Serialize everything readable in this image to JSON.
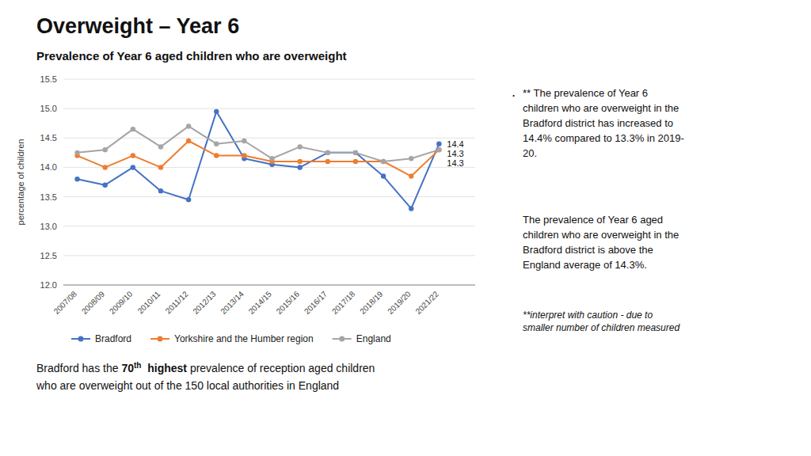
{
  "chart_data": {
    "type": "line",
    "title": "Overweight – Year 6",
    "subtitle": "Prevalence of Year 6 aged children who are overweight",
    "ylabel": "percentage of children",
    "categories": [
      "2007/08",
      "2008/09",
      "2009/10",
      "2010/11",
      "2011/12",
      "2012/13",
      "2013/14",
      "2014/15",
      "2015/16",
      "2016/17",
      "2017/18",
      "2018/19",
      "2019/20",
      "2021/22"
    ],
    "series": [
      {
        "name": "Bradford",
        "color": "#4472C4",
        "marker": "circle",
        "values": [
          13.8,
          13.7,
          14.0,
          13.6,
          13.45,
          14.95,
          14.15,
          14.05,
          14.0,
          14.25,
          14.25,
          13.85,
          13.3,
          14.4
        ]
      },
      {
        "name": "Yorkshire and the Humber region",
        "color": "#ED7D31",
        "marker": "circle",
        "values": [
          14.2,
          14.0,
          14.2,
          14.0,
          14.45,
          14.2,
          14.2,
          14.1,
          14.1,
          14.1,
          14.1,
          14.1,
          13.85,
          14.3
        ]
      },
      {
        "name": "England",
        "color": "#A5A5A5",
        "marker": "circle",
        "values": [
          14.25,
          14.3,
          14.65,
          14.35,
          14.7,
          14.4,
          14.45,
          14.15,
          14.35,
          14.25,
          14.25,
          14.1,
          14.15,
          14.3
        ]
      }
    ],
    "ylim": [
      12.0,
      15.5
    ],
    "yticks": [
      {
        "value": 12.0,
        "label": "12.0"
      },
      12.5,
      {
        "value": 13.0,
        "label": "13.0"
      },
      13.5,
      {
        "value": 14.0,
        "label": "14.0"
      },
      14.5,
      {
        "value": 15.0,
        "label": "15.0"
      },
      15.5
    ],
    "grid": true,
    "legend": "bottom",
    "annotations": [
      {
        "text": "14.4",
        "x": "2021/22",
        "y": 14.4
      },
      {
        "text": "14.3",
        "x": "2021/22",
        "y": 14.3
      },
      {
        "text": "14.3",
        "x": "2021/22",
        "y": 14.3
      }
    ],
    "footnote": [
      [
        "Bradford has the ",
        "70",
        "th",
        "  highest",
        " prevalence of reception aged children"
      ],
      [
        "who are overweight out of the 150 local authorities in England"
      ]
    ],
    "notes": [
      {
        "bullet": ".",
        "text": "** The prevalence of Year 6\nchildren who are overweight in the\nBradford district has increased to\n14.4% compared to 13.3% in 2019-\n20."
      },
      {
        "text": "The prevalence of Year 6 aged\nchildren who are overweight in the\nBradford district is above the\nEngland average of 14.3%."
      },
      {
        "text": "**interpret with caution - due to\nsmaller number of children measured"
      }
    ]
  }
}
